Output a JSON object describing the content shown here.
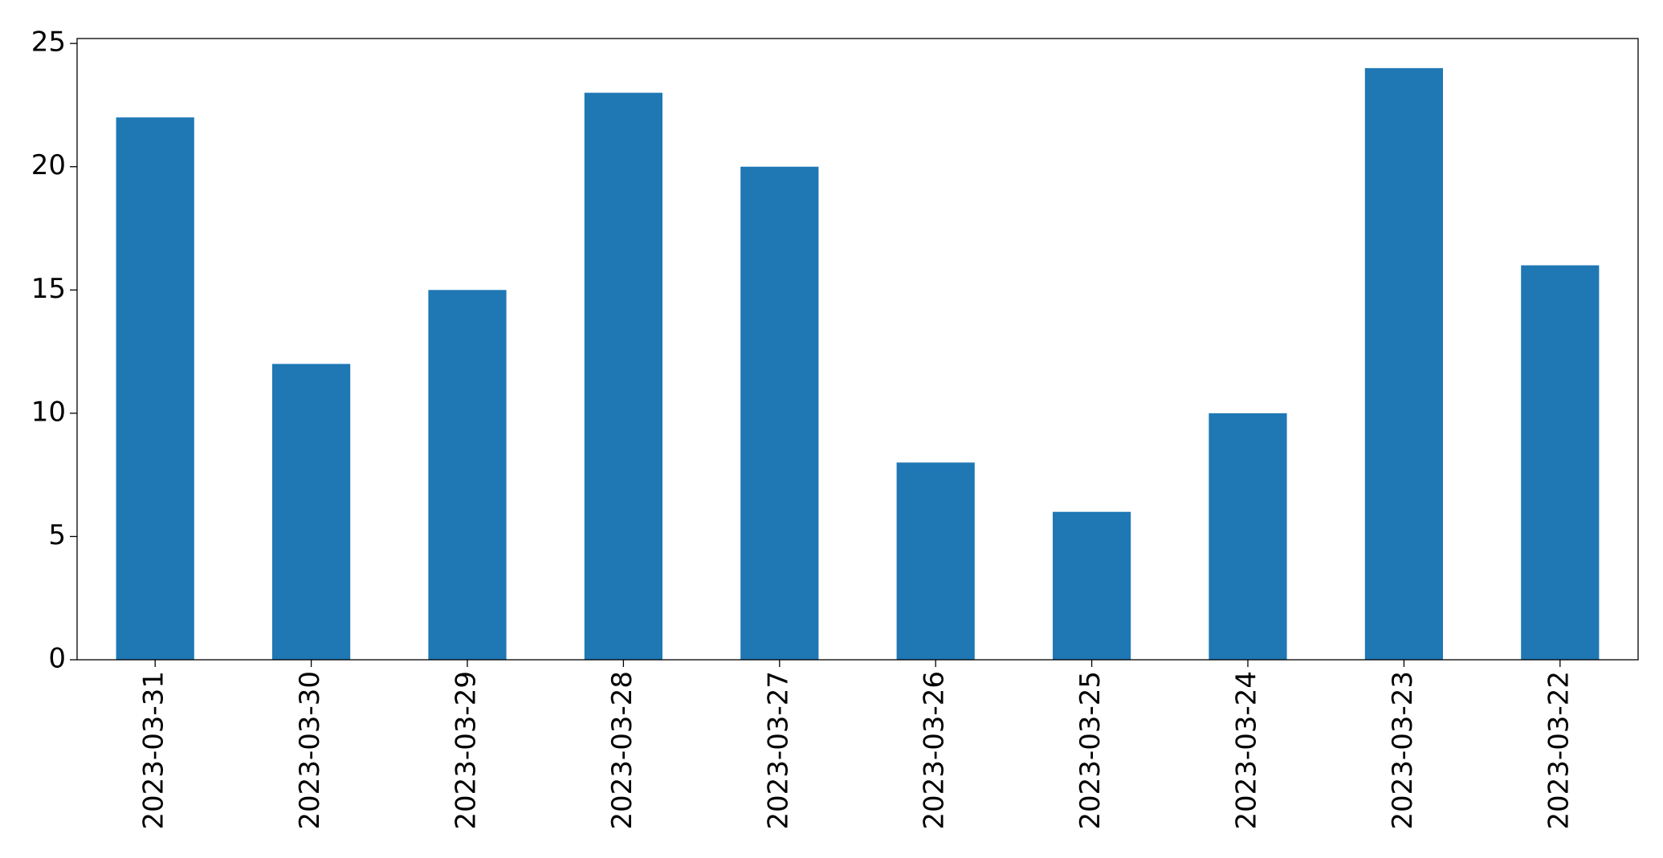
{
  "chart_data": {
    "type": "bar",
    "categories": [
      "2023-03-31",
      "2023-03-30",
      "2023-03-29",
      "2023-03-28",
      "2023-03-27",
      "2023-03-26",
      "2023-03-25",
      "2023-03-24",
      "2023-03-23",
      "2023-03-22"
    ],
    "values": [
      22,
      12,
      15,
      23,
      20,
      8,
      6,
      10,
      24,
      16
    ],
    "color": "#1f77b4",
    "ylim": [
      0,
      25.2
    ],
    "yticks": [
      0,
      5,
      10,
      15,
      20,
      25
    ],
    "grid": false
  }
}
